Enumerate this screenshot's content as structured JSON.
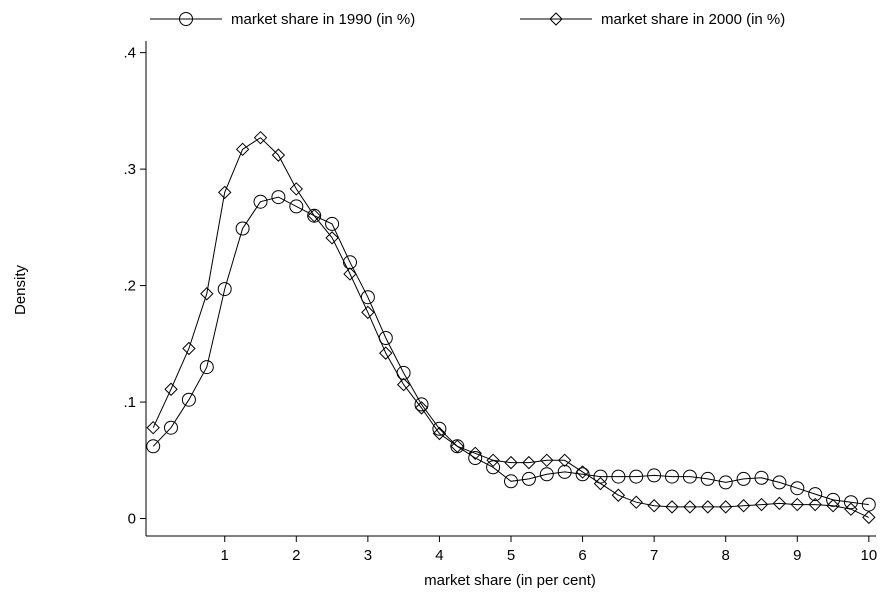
{
  "chart_data": {
    "type": "line",
    "title": "",
    "xlabel": "market share (in per cent)",
    "ylabel": "Density",
    "xlim": [
      -0.1,
      10.1
    ],
    "ylim": [
      -0.015,
      0.41
    ],
    "x_ticks": [
      {
        "value": 1,
        "label": "1"
      },
      {
        "value": 2,
        "label": "2"
      },
      {
        "value": 3,
        "label": "3"
      },
      {
        "value": 4,
        "label": "4"
      },
      {
        "value": 5,
        "label": "5"
      },
      {
        "value": 6,
        "label": "6"
      },
      {
        "value": 7,
        "label": "7"
      },
      {
        "value": 8,
        "label": "8"
      },
      {
        "value": 9,
        "label": "9"
      },
      {
        "value": 10,
        "label": "10"
      }
    ],
    "y_ticks": [
      {
        "value": 0,
        "label": "0"
      },
      {
        "value": 0.1,
        "label": ".1"
      },
      {
        "value": 0.2,
        "label": ".2"
      },
      {
        "value": 0.3,
        "label": ".3"
      },
      {
        "value": 0.4,
        "label": ".4"
      }
    ],
    "grid": false,
    "legend_position": "top",
    "series": [
      {
        "name": "market share in 1990 (in %)",
        "marker": "circle",
        "x": [
          0,
          0.25,
          0.5,
          0.75,
          1.0,
          1.25,
          1.5,
          1.75,
          2.0,
          2.25,
          2.5,
          2.75,
          3.0,
          3.25,
          3.5,
          3.75,
          4.0,
          4.25,
          4.5,
          4.75,
          5.0,
          5.25,
          5.5,
          5.75,
          6.0,
          6.25,
          6.5,
          6.75,
          7.0,
          7.25,
          7.5,
          7.75,
          8.0,
          8.25,
          8.5,
          8.75,
          9.0,
          9.25,
          9.5,
          9.75,
          10.0
        ],
        "y": [
          0.062,
          0.078,
          0.102,
          0.13,
          0.197,
          0.249,
          0.272,
          0.276,
          0.268,
          0.26,
          0.253,
          0.22,
          0.19,
          0.155,
          0.125,
          0.098,
          0.077,
          0.062,
          0.052,
          0.044,
          0.032,
          0.034,
          0.038,
          0.04,
          0.038,
          0.036,
          0.036,
          0.036,
          0.037,
          0.036,
          0.036,
          0.034,
          0.031,
          0.034,
          0.035,
          0.031,
          0.026,
          0.021,
          0.016,
          0.014,
          0.012
        ]
      },
      {
        "name": "market share in 2000 (in %)",
        "marker": "diamond",
        "x": [
          0,
          0.25,
          0.5,
          0.75,
          1.0,
          1.25,
          1.5,
          1.75,
          2.0,
          2.25,
          2.5,
          2.75,
          3.0,
          3.25,
          3.5,
          3.75,
          4.0,
          4.25,
          4.5,
          4.75,
          5.0,
          5.25,
          5.5,
          5.75,
          6.0,
          6.25,
          6.5,
          6.75,
          7.0,
          7.25,
          7.5,
          7.75,
          8.0,
          8.25,
          8.5,
          8.75,
          9.0,
          9.25,
          9.5,
          9.75,
          10.0
        ],
        "y": [
          0.078,
          0.111,
          0.146,
          0.193,
          0.28,
          0.317,
          0.327,
          0.312,
          0.283,
          0.26,
          0.241,
          0.21,
          0.177,
          0.142,
          0.115,
          0.095,
          0.073,
          0.062,
          0.056,
          0.05,
          0.048,
          0.048,
          0.05,
          0.05,
          0.04,
          0.03,
          0.02,
          0.014,
          0.011,
          0.01,
          0.01,
          0.01,
          0.01,
          0.011,
          0.012,
          0.013,
          0.012,
          0.012,
          0.011,
          0.008,
          0.001
        ]
      }
    ]
  }
}
